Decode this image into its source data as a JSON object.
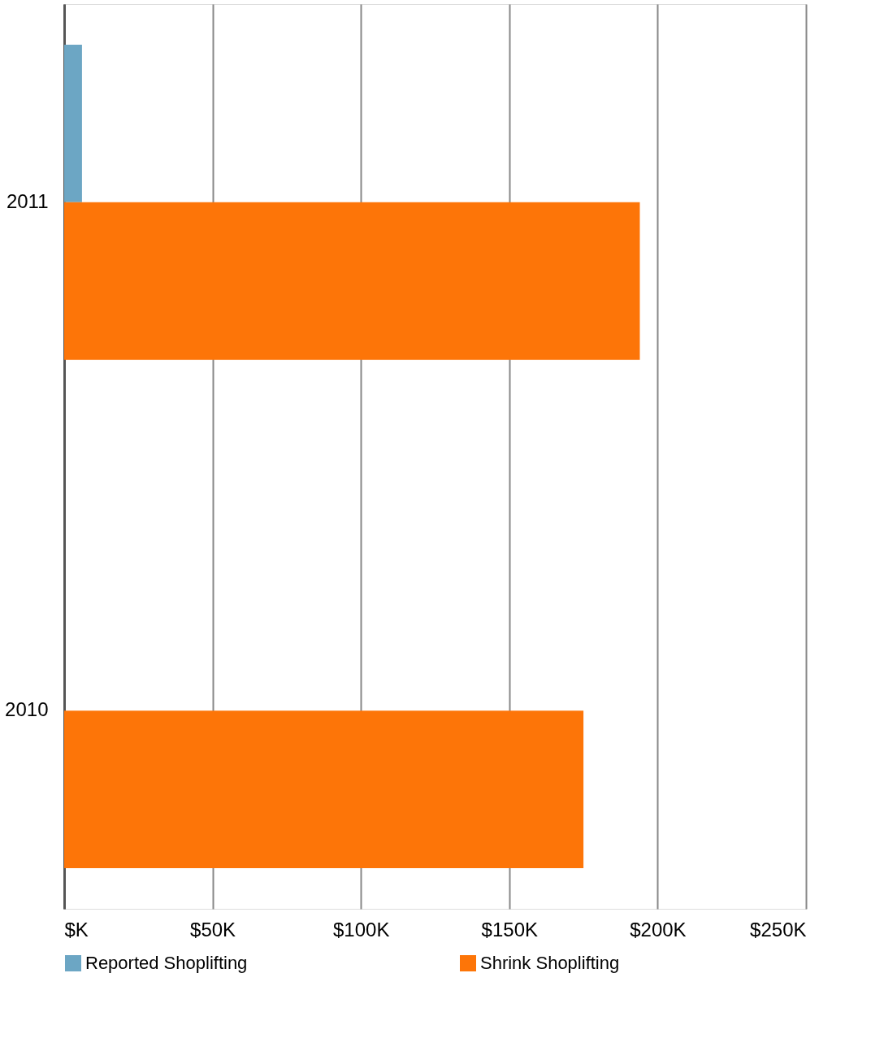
{
  "chart_data": {
    "type": "bar",
    "orientation": "horizontal",
    "categories": [
      "2011",
      "2010"
    ],
    "series": [
      {
        "name": "Reported Shoplifting",
        "color": "#6ca6c4",
        "values": [
          6000,
          null
        ]
      },
      {
        "name": "Shrink Shoplifting",
        "color": "#fd7508",
        "values": [
          194000,
          175000
        ]
      }
    ],
    "xlim": [
      0,
      250000
    ],
    "xticks": [
      {
        "value": 0,
        "label": "$K"
      },
      {
        "value": 50000,
        "label": "$50K"
      },
      {
        "value": 100000,
        "label": "$100K"
      },
      {
        "value": 150000,
        "label": "$150K"
      },
      {
        "value": 200000,
        "label": "$200K"
      },
      {
        "value": 250000,
        "label": "$250K"
      }
    ],
    "grid": "x",
    "legend": "bottom"
  }
}
